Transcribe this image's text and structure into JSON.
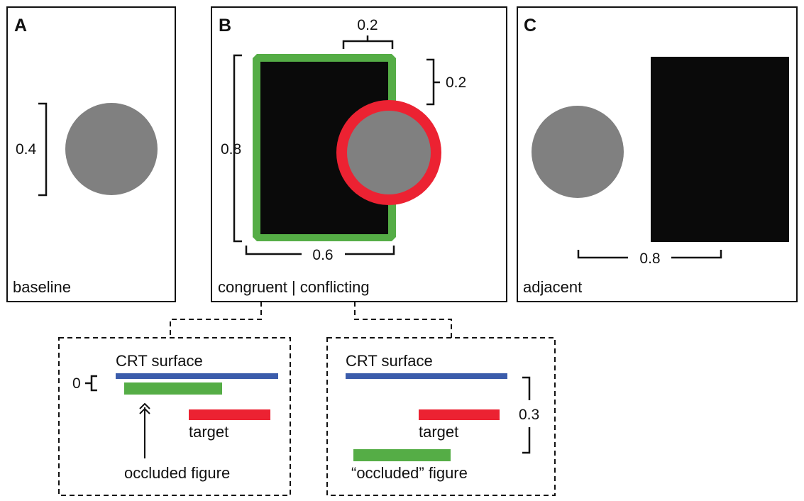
{
  "panels": {
    "a": {
      "letter": "A",
      "caption": "baseline",
      "diameter": "0.4"
    },
    "b": {
      "letter": "B",
      "caption": "congruent | conflicting",
      "top_offset": "0.2",
      "right_offset": "0.2",
      "height": "0.8",
      "width": "0.6"
    },
    "c": {
      "letter": "C",
      "caption": "adjacent",
      "separation": "0.8"
    }
  },
  "insets": {
    "congruent": {
      "surface_label": "CRT surface",
      "depth_label": "0",
      "target_label": "target",
      "figure_label": "occluded figure"
    },
    "conflicting": {
      "surface_label": "CRT surface",
      "depth_label": "0.3",
      "target_label": "target",
      "figure_label": "“occluded” figure"
    }
  },
  "colors": {
    "outline": "#111111",
    "black_rectangle": "#0a0a0a",
    "gray_disk": "#808080",
    "green": "#55ad46",
    "red": "#ec2232",
    "blue": "#3b5cab"
  }
}
